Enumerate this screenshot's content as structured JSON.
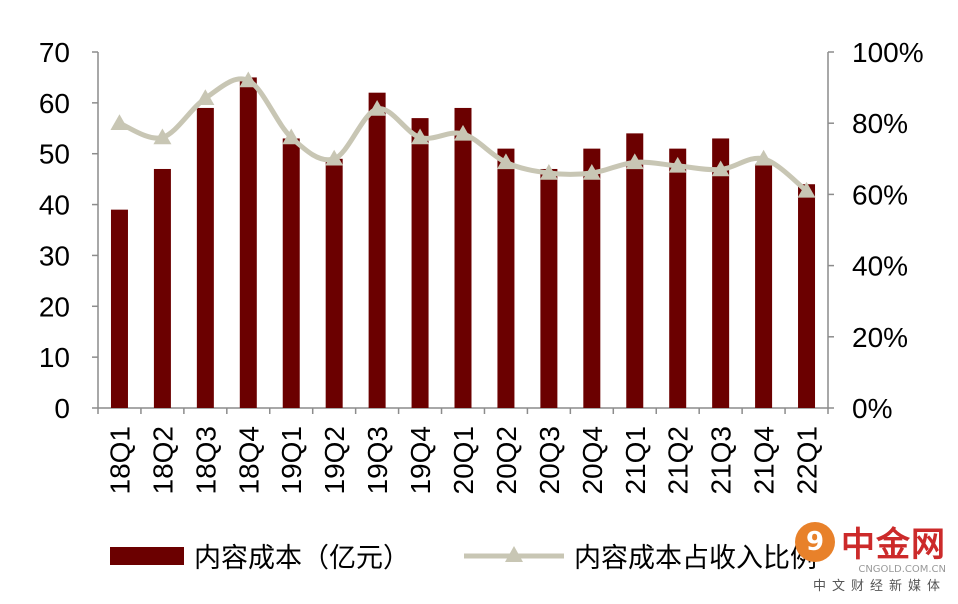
{
  "chart_data": {
    "type": "bar",
    "categories": [
      "18Q1",
      "18Q2",
      "18Q3",
      "18Q4",
      "19Q1",
      "19Q2",
      "19Q3",
      "19Q4",
      "20Q1",
      "20Q2",
      "20Q3",
      "20Q4",
      "21Q1",
      "21Q2",
      "21Q3",
      "21Q4",
      "22Q1"
    ],
    "series": [
      {
        "name": "内容成本（亿元）",
        "type": "bar",
        "axis": "left",
        "color": "#6b0000",
        "values": [
          39,
          47,
          59,
          65,
          53,
          49,
          62,
          57,
          59,
          51,
          47,
          51,
          54,
          51,
          53,
          48,
          44
        ]
      },
      {
        "name": "内容成本占收入比例",
        "type": "line",
        "axis": "right",
        "color": "#c8c6b4",
        "marker": "triangle",
        "values": [
          80,
          76,
          87,
          92,
          76,
          70,
          84,
          76,
          77,
          69,
          66,
          66,
          69,
          68,
          67,
          70,
          61
        ]
      }
    ],
    "y_left": {
      "ylim": [
        0,
        70
      ],
      "ticks": [
        0,
        10,
        20,
        30,
        40,
        50,
        60,
        70
      ]
    },
    "y_right": {
      "ylim": [
        0,
        100
      ],
      "ticks": [
        "0%",
        "20%",
        "40%",
        "60%",
        "80%",
        "100%"
      ]
    },
    "grid": false,
    "legend_position": "bottom"
  },
  "watermark": {
    "mark": "9",
    "name": "中金网",
    "url": "CNGOLD.COM.CN",
    "subtitle": "中文财经新媒体"
  }
}
